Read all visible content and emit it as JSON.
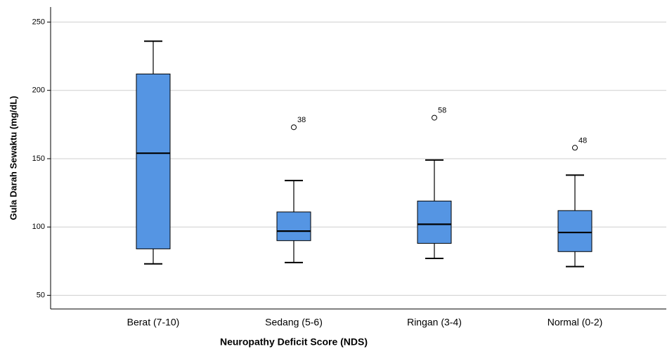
{
  "chart_data": {
    "type": "box",
    "x_label": "Neuropathy Deficit Score (NDS)",
    "y_label": "Gula Darah Sewaktu (mg/dL)",
    "categories": [
      "Berat (7-10)",
      "Sedang (5-6)",
      "Ringan (3-4)",
      "Normal (0-2)"
    ],
    "color": "#5595e3",
    "boxes": [
      {
        "min": 73,
        "q1": 84,
        "median": 154,
        "q3": 212,
        "max": 236,
        "outliers": []
      },
      {
        "min": 74,
        "q1": 90,
        "median": 97,
        "q3": 111,
        "max": 134,
        "outliers": [
          {
            "value": 173,
            "label": "38"
          }
        ]
      },
      {
        "min": 77,
        "q1": 88,
        "median": 102,
        "q3": 119,
        "max": 149,
        "outliers": [
          {
            "value": 180,
            "label": "58"
          }
        ]
      },
      {
        "min": 71,
        "q1": 82,
        "median": 96,
        "q3": 112,
        "max": 138,
        "outliers": [
          {
            "value": 158,
            "label": "48"
          }
        ]
      }
    ],
    "ylim": [
      40,
      261
    ],
    "yticks": [
      50,
      100,
      150,
      200,
      250
    ],
    "grid": true
  }
}
